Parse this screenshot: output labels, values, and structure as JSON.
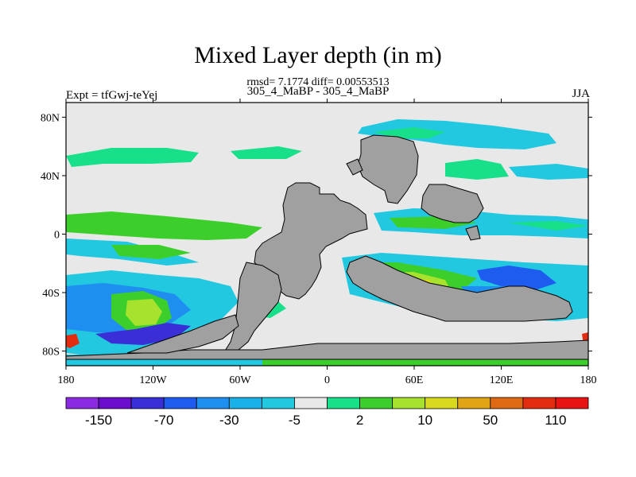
{
  "title": "Mixed Layer depth (in m)",
  "stats_line": "rmsd= 7.1774 diff= 0.00553513",
  "experiments_line": "305_4_MaBP - 305_4_MaBP",
  "expt_label": "Expt = tfGwj-teYej",
  "season_label": "JJA",
  "chart_data": {
    "type": "heatmap",
    "title": "Mixed Layer depth (in m)",
    "xlabel": "",
    "ylabel": "",
    "xlim": [
      -180,
      180
    ],
    "ylim": [
      -90,
      90
    ],
    "x_ticks": [
      {
        "value": -180,
        "label": "180"
      },
      {
        "value": -120,
        "label": "120W"
      },
      {
        "value": -60,
        "label": "60W"
      },
      {
        "value": 0,
        "label": "0"
      },
      {
        "value": 60,
        "label": "60E"
      },
      {
        "value": 120,
        "label": "120E"
      },
      {
        "value": 180,
        "label": "180"
      }
    ],
    "y_ticks": [
      {
        "value": 80,
        "label": "80N"
      },
      {
        "value": 40,
        "label": "40N"
      },
      {
        "value": 0,
        "label": "0"
      },
      {
        "value": -40,
        "label": "40S"
      },
      {
        "value": -80,
        "label": "80S"
      }
    ],
    "colorbar": {
      "colors": [
        "#8a2be2",
        "#6a0dcd",
        "#3a2fd6",
        "#1e5cf0",
        "#1e8ff0",
        "#1ab0e8",
        "#22c8e0",
        "#e8e8e8",
        "#18e08a",
        "#3ccf2c",
        "#a6e22e",
        "#d8d81c",
        "#e0a414",
        "#e06a14",
        "#e22c10",
        "#e81414"
      ],
      "labels": [
        {
          "index": 1,
          "text": "-150"
        },
        {
          "index": 3,
          "text": "-70"
        },
        {
          "index": 5,
          "text": "-30"
        },
        {
          "index": 7,
          "text": "-5"
        },
        {
          "index": 9,
          "text": "2"
        },
        {
          "index": 11,
          "text": "10"
        },
        {
          "index": 13,
          "text": "50"
        },
        {
          "index": 15,
          "text": "110"
        }
      ]
    },
    "background_value_color": "#e8e8e8",
    "land_color": "#a0a0a0",
    "regions": [
      {
        "name": "north-pacific-positive",
        "level": "2..10",
        "color": "#18e08a",
        "lon": [
          -168,
          -112
        ],
        "lat": [
          42,
          54
        ]
      },
      {
        "name": "north-atlantic-positive",
        "level": "2..10",
        "color": "#18e08a",
        "lon": [
          -10,
          30
        ],
        "lat": [
          60,
          78
        ]
      },
      {
        "name": "tropical-pacific-positive",
        "level": "10",
        "color": "#3ccf2c",
        "lon": [
          -176,
          -120
        ],
        "lat": [
          -8,
          12
        ]
      },
      {
        "name": "tropical-pacific-negative",
        "level": "-5",
        "color": "#22c8e0",
        "lon": [
          -160,
          -100
        ],
        "lat": [
          10,
          18
        ]
      },
      {
        "name": "south-pacific-maximum",
        "level": "50",
        "color": "#d8d81c",
        "lon": [
          -150,
          -120
        ],
        "lat": [
          -62,
          -48
        ]
      },
      {
        "name": "southern-ocean-negative",
        "level": "-70",
        "color": "#3a2fd6",
        "lon": [
          -150,
          -110
        ],
        "lat": [
          -78,
          -70
        ]
      },
      {
        "name": "indian-ocean-positive",
        "level": "50",
        "color": "#d8d81c",
        "lon": [
          60,
          100
        ],
        "lat": [
          -42,
          -28
        ]
      },
      {
        "name": "indian-ocean-negative",
        "level": "-30",
        "color": "#1e5cf0",
        "lon": [
          110,
          140
        ],
        "lat": [
          -40,
          -30
        ]
      },
      {
        "name": "southern-ocean-positive",
        "level": "10",
        "color": "#3ccf2c",
        "lon": [
          -20,
          120
        ],
        "lat": [
          -84,
          -74
        ]
      }
    ]
  }
}
